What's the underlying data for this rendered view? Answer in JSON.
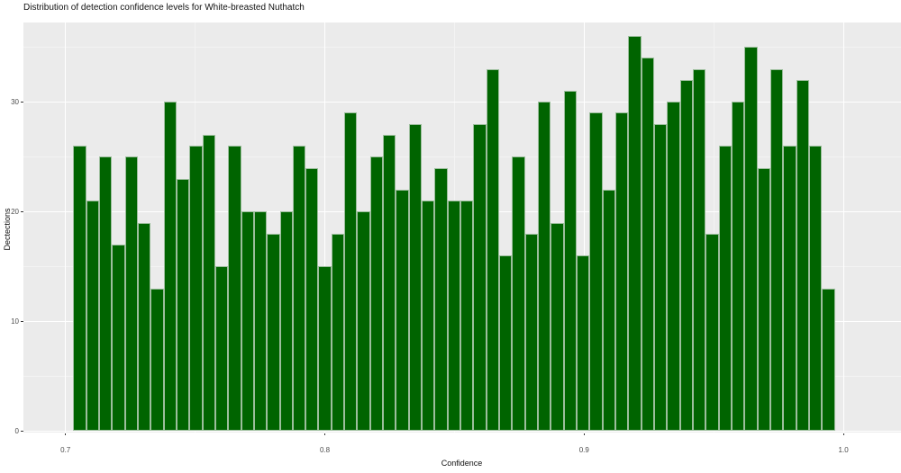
{
  "chart_data": {
    "type": "bar",
    "subtype": "histogram",
    "title": "Distribution of detection confidence levels for White-breasted Nuthatch",
    "xlabel": "Confidence",
    "ylabel": "Dectections",
    "x_tick_labels": [
      "0.7",
      "0.8",
      "0.9",
      "1.0"
    ],
    "x_tick_values": [
      0.7,
      0.8,
      0.9,
      1.0
    ],
    "x_minor_values": [
      0.75,
      0.85,
      0.95
    ],
    "y_tick_labels": [
      "0",
      "10",
      "20",
      "30"
    ],
    "y_tick_values": [
      0,
      10,
      20,
      30
    ],
    "y_minor_values": [
      5,
      15,
      25,
      35
    ],
    "xlim": [
      0.684,
      1.022
    ],
    "ylim": [
      0,
      37.3
    ],
    "grid": "major+minor",
    "legend_position": "none",
    "bin_start": 0.7025,
    "bin_width": 0.005,
    "bin_center_start": 0.705,
    "bin_center_step": 0.005,
    "values": [
      26,
      21,
      25,
      17,
      25,
      19,
      13,
      30,
      23,
      26,
      27,
      15,
      26,
      20,
      20,
      18,
      20,
      26,
      24,
      15,
      18,
      29,
      20,
      25,
      27,
      22,
      28,
      21,
      24,
      21,
      21,
      28,
      33,
      16,
      25,
      18,
      30,
      19,
      31,
      16,
      29,
      22,
      29,
      36,
      34,
      28,
      30,
      32,
      33,
      18,
      26,
      30,
      35,
      24,
      33,
      26,
      32,
      26,
      13
    ],
    "colors": {
      "bar_fill": "#006400",
      "bar_stroke": "#9CBE9C",
      "panel_bg": "#EBEBEB",
      "grid_major": "#FFFFFF",
      "grid_minor": "#F3F3F3",
      "tick_mark": "#333333",
      "tick_text": "#4D4D4D",
      "text": "#111111",
      "page_bg": "#FFFFFF"
    }
  }
}
